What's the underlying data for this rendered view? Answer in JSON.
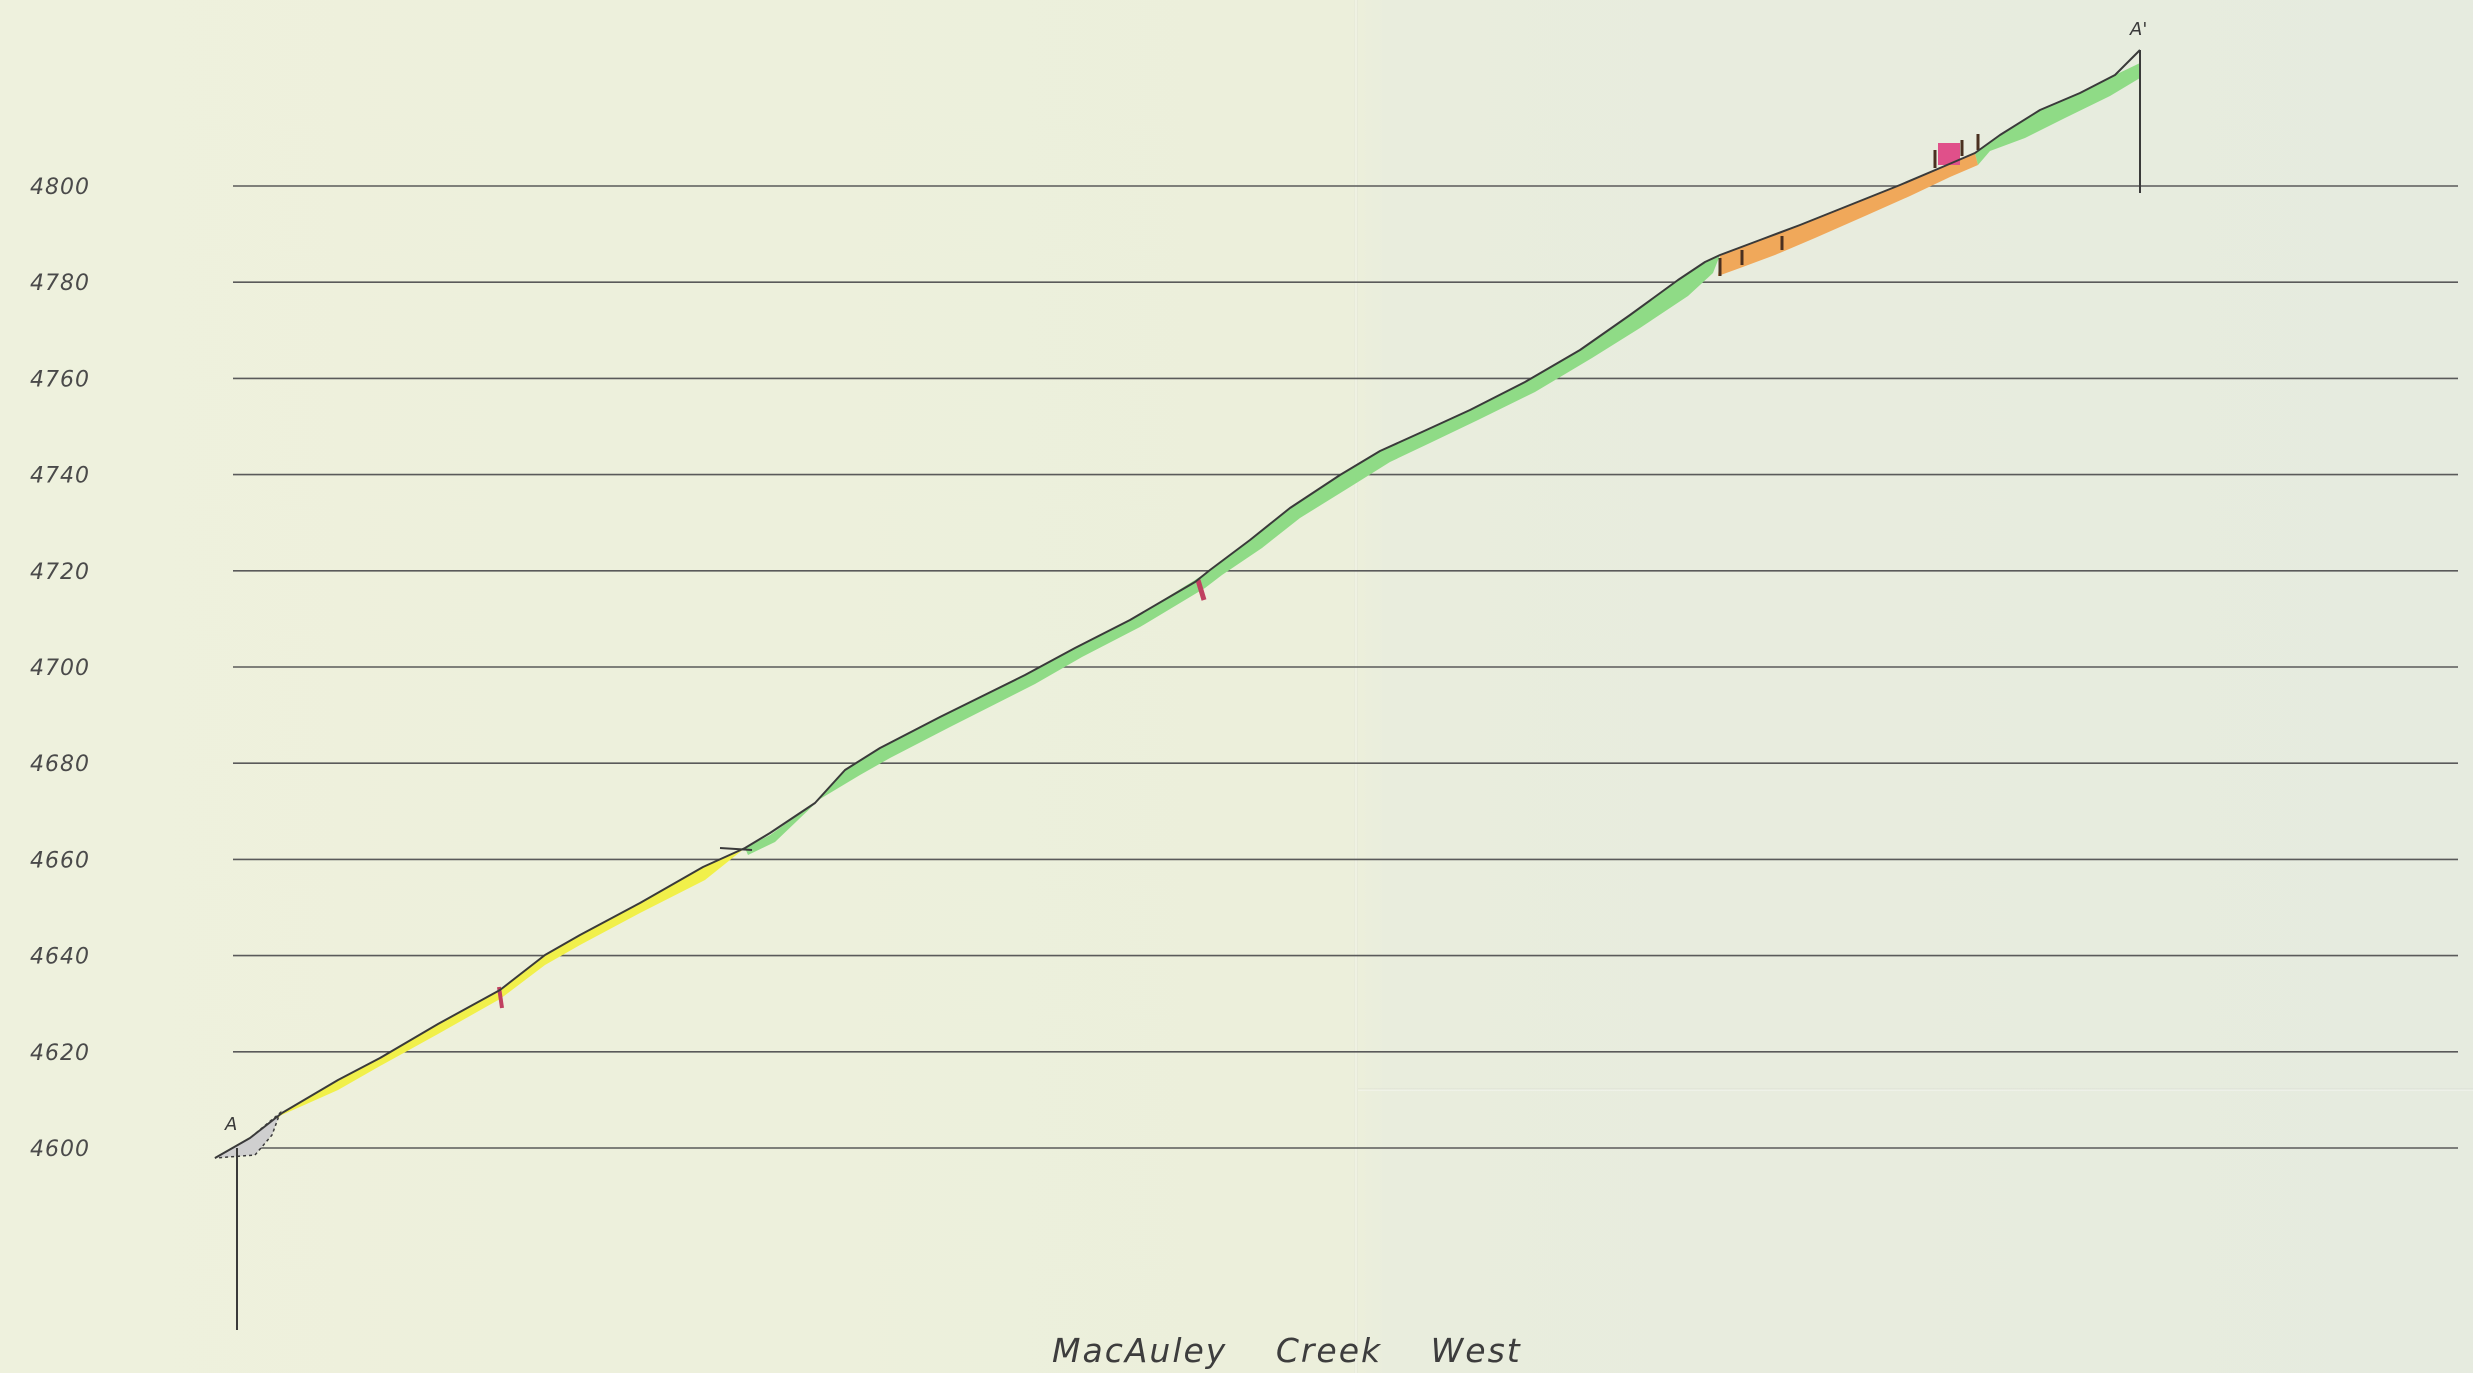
{
  "title": "MacAuley   Creek   West",
  "section": {
    "start_label": "A",
    "end_label": "A'"
  },
  "elevation_axis": {
    "ticks": [
      4800,
      4780,
      4760,
      4740,
      4720,
      4700,
      4680,
      4660,
      4640,
      4620,
      4600
    ]
  },
  "colors": {
    "yellow_unit": "#f1f04a",
    "green_unit": "#8fdb86",
    "orange_unit": "#f0a85a",
    "pink_unit": "#e0508a",
    "overburden": "#bfbfbf"
  },
  "units": [
    {
      "color": "yellow_unit",
      "from_elev": 4600,
      "to_elev": 4662
    },
    {
      "color": "green_unit",
      "from_elev": 4662,
      "to_elev": 4784
    },
    {
      "color": "orange_unit",
      "from_elev": 4784,
      "to_elev": 4806
    },
    {
      "color": "green_unit",
      "from_elev": 4806,
      "to_elev": 4829
    }
  ]
}
